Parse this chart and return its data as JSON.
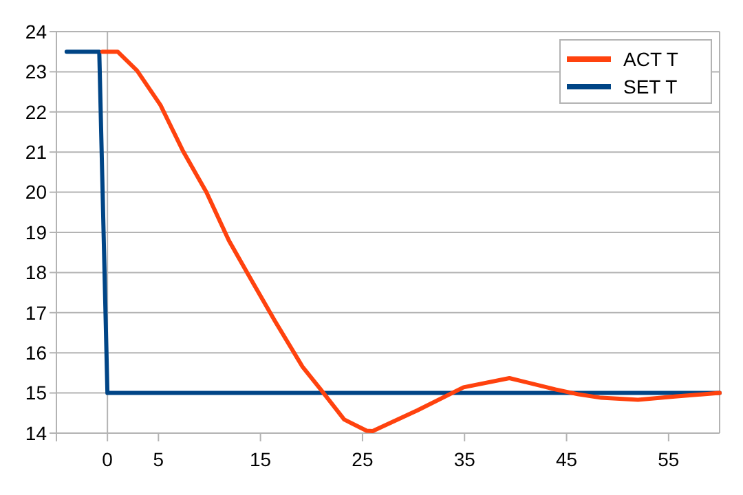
{
  "chart_data": {
    "type": "line",
    "xlim": [
      -5,
      60
    ],
    "ylim": [
      14,
      24
    ],
    "xticks": [
      {
        "value": -5,
        "label": null
      },
      0,
      5,
      15,
      25,
      35,
      45,
      55
    ],
    "yticks": [
      14,
      15,
      16,
      17,
      18,
      19,
      20,
      21,
      22,
      23,
      24
    ],
    "grid": "y",
    "legend": "top right",
    "line_style": "solid",
    "marker": "none",
    "ref_lines": [
      {
        "axis": "x",
        "value": 0,
        "color": "#b3b3b3"
      }
    ],
    "series": [
      {
        "name": "ACT T",
        "color": "#ff420e",
        "x": [
          -0.5,
          1.0,
          2.9,
          5.2,
          7.4,
          9.7,
          11.9,
          14.2,
          16.4,
          18.7,
          19.1,
          20.9,
          23.2,
          25.4,
          26,
          30.4,
          34.9,
          39.4,
          43.9,
          46.1,
          48.4,
          52.0,
          55.6,
          60
        ],
        "values": [
          23.5,
          23.5,
          23.03,
          22.17,
          21.03,
          20.0,
          18.8,
          17.77,
          16.8,
          15.83,
          15.66,
          15.09,
          14.34,
          14.06,
          14.05,
          14.57,
          15.14,
          15.37,
          15.09,
          14.97,
          14.88,
          14.83,
          14.91,
          15.0
        ]
      },
      {
        "name": "SET T",
        "color": "#004586",
        "x": [
          -4,
          -0.8,
          0,
          60
        ],
        "values": [
          23.5,
          23.5,
          15,
          15
        ]
      }
    ]
  }
}
